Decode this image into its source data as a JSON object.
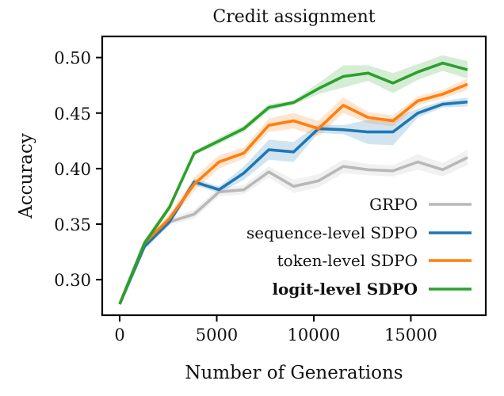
{
  "chart_data": {
    "type": "line",
    "title": "Credit assignment",
    "xlabel": "Number of Generations",
    "ylabel": "Accuracy",
    "xlim": [
      -900,
      18860
    ],
    "ylim": [
      0.268,
      0.519
    ],
    "xticks": [
      0,
      5000,
      10000,
      15000
    ],
    "xtick_labels": [
      "0",
      "5000",
      "10000",
      "15000"
    ],
    "yticks": [
      0.3,
      0.35,
      0.4,
      0.45,
      0.5
    ],
    "ytick_labels": [
      "0.30",
      "0.35",
      "0.40",
      "0.45",
      "0.50"
    ],
    "grid": false,
    "legend_position": "lower-right",
    "x": [
      0,
      1280,
      2560,
      3840,
      5120,
      6400,
      7680,
      8960,
      10240,
      11520,
      12800,
      14080,
      15360,
      16640,
      17920
    ],
    "series": [
      {
        "name": "GRPO",
        "color": "#b8b8b8",
        "bold": false,
        "values": [
          0.278,
          0.333,
          0.352,
          0.359,
          0.379,
          0.381,
          0.397,
          0.384,
          0.389,
          0.402,
          0.399,
          0.398,
          0.406,
          0.399,
          0.41
        ],
        "band": [
          0.001,
          0.003,
          0.003,
          0.004,
          0.004,
          0.004,
          0.005,
          0.006,
          0.006,
          0.006,
          0.005,
          0.005,
          0.007,
          0.006,
          0.007
        ]
      },
      {
        "name": "sequence-level SDPO",
        "color": "#1f77b4",
        "bold": false,
        "values": [
          0.278,
          0.33,
          0.352,
          0.388,
          0.381,
          0.396,
          0.417,
          0.415,
          0.436,
          0.435,
          0.433,
          0.433,
          0.45,
          0.458,
          0.46
        ],
        "band": [
          0.001,
          0.003,
          0.003,
          0.003,
          0.003,
          0.006,
          0.009,
          0.009,
          0.004,
          0.004,
          0.011,
          0.012,
          0.004,
          0.003,
          0.004
        ]
      },
      {
        "name": "token-level SDPO",
        "color": "#ff7f0e",
        "bold": false,
        "values": [
          0.278,
          0.333,
          0.355,
          0.386,
          0.406,
          0.414,
          0.439,
          0.443,
          0.436,
          0.457,
          0.446,
          0.443,
          0.461,
          0.467,
          0.476
        ],
        "band": [
          0.001,
          0.003,
          0.004,
          0.006,
          0.006,
          0.005,
          0.006,
          0.007,
          0.007,
          0.007,
          0.005,
          0.005,
          0.004,
          0.004,
          0.005
        ]
      },
      {
        "name": "logit-level SDPO",
        "color": "#2ca02c",
        "bold": true,
        "values": [
          0.278,
          0.333,
          0.365,
          0.414,
          0.425,
          0.436,
          0.455,
          0.4595,
          0.472,
          0.483,
          0.486,
          0.477,
          0.487,
          0.495,
          0.489
        ],
        "band": [
          0.001,
          0.003,
          0.003,
          0.002,
          0.003,
          0.003,
          0.003,
          0.002,
          0.005,
          0.01,
          0.007,
          0.009,
          0.007,
          0.007,
          0.008
        ]
      }
    ]
  }
}
